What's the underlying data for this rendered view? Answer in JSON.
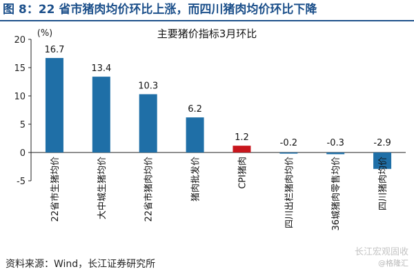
{
  "figure_title": "图 8：22 省市猪肉均价环比上涨，而四川猪肉均价环比下降",
  "source": "资料来源：Wind，长江证券研究所",
  "watermark": {
    "line1": "长江宏观固收",
    "line2": "@格隆汇"
  },
  "colors": {
    "title_blue": "#1b4f8a",
    "bar_blue": "#1f6fa7",
    "bar_red": "#c8161d",
    "axis": "#222222"
  },
  "chart_data": {
    "type": "bar",
    "title": "主要猪价指标3月环比",
    "unit_label": "(%)",
    "categories": [
      "22省市生猪均价",
      "大中城生猪均价",
      "22省市猪肉均价",
      "猪肉批发价",
      "CPI猪肉",
      "四川出栏猪肉均价",
      "36城猪肉零售均价",
      "四川猪肉均价"
    ],
    "values": [
      16.7,
      13.4,
      10.3,
      6.2,
      1.2,
      -0.2,
      -0.3,
      -2.9
    ],
    "value_labels": [
      "16.7",
      "13.4",
      "10.3",
      "6.2",
      "1.2",
      "-0.2",
      "-0.3",
      "-2.9"
    ],
    "highlight_index": 4,
    "ylim": [
      -5,
      20
    ],
    "yticks": [
      -5,
      0,
      5,
      10,
      15,
      20
    ],
    "grid": false,
    "legend": "none"
  }
}
